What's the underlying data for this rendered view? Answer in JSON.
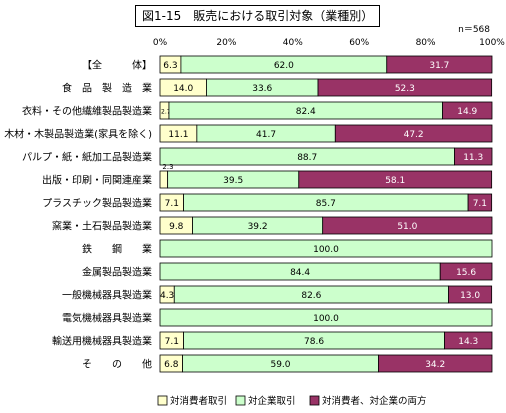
{
  "chart_data": {
    "type": "bar",
    "orientation": "horizontal",
    "stacked": "100%",
    "title": "図1-15　販売における取引対象（業種別）",
    "n_label": "n＝568",
    "xlim": [
      0,
      100
    ],
    "x_ticks": [
      "0%",
      "20%",
      "40%",
      "60%",
      "80%",
      "100%"
    ],
    "grid": false,
    "legend_position": "bottom",
    "categories": [
      "【全　　　体】",
      "食　品　製　造　業",
      "衣料・その他繊維製品製造業",
      "木材・木製品製造業(家具を除く)",
      "パルプ・紙・紙加工品製造業",
      "出版・印刷・同関連産業",
      "プラスチック製品製造業",
      "窯業・土石製品製造業",
      "鉄　　鋼　　業",
      "金属製品製造業",
      "一般機械器具製造業",
      "電気機械器具製造業",
      "輸送用機械器具製造業",
      "そ　　の　　他"
    ],
    "series": [
      {
        "name": "対消費者取引",
        "color": "#ffffcc",
        "values": [
          6.3,
          14.0,
          2.7,
          11.1,
          0,
          2.3,
          7.1,
          9.8,
          0,
          0,
          4.3,
          0,
          7.1,
          6.8
        ],
        "labels": [
          "6.3",
          "14.0",
          "2.7",
          "11.1",
          "",
          "2.3",
          "7.1",
          "9.8",
          "",
          "",
          "4.3",
          "",
          "7.1",
          "6.8"
        ]
      },
      {
        "name": "対企業取引",
        "color": "#ccffcc",
        "values": [
          62.0,
          33.6,
          82.4,
          41.7,
          88.7,
          39.5,
          85.7,
          39.2,
          100.0,
          84.4,
          82.6,
          100.0,
          78.6,
          59.0
        ],
        "labels": [
          "62.0",
          "33.6",
          "82.4",
          "41.7",
          "88.7",
          "39.5",
          "85.7",
          "39.2",
          "100.0",
          "84.4",
          "82.6",
          "100.0",
          "78.6",
          "59.0"
        ]
      },
      {
        "name": "対消費者、対企業の両方",
        "color": "#993366",
        "values": [
          31.7,
          52.3,
          14.9,
          47.2,
          11.3,
          58.1,
          7.1,
          51.0,
          0,
          15.6,
          13.0,
          0,
          14.3,
          34.2
        ],
        "labels": [
          "31.7",
          "52.3",
          "14.9",
          "47.2",
          "11.3",
          "58.1",
          "7.1",
          "51.0",
          "",
          "15.6",
          "13.0",
          "",
          "14.3",
          "34.2"
        ]
      }
    ]
  }
}
